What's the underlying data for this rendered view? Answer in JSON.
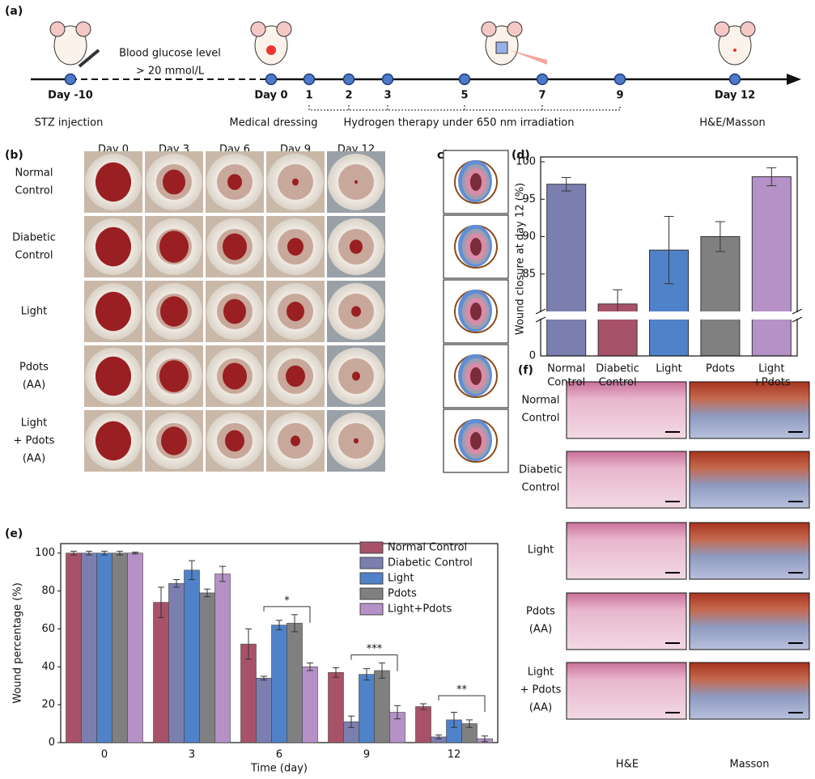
{
  "panel_labels": [
    "(a)",
    "(b)",
    "c)",
    "(d)",
    "(e)",
    "(f)"
  ],
  "timeline": {
    "day_labels": [
      "Day -10",
      "Day 0",
      "1",
      "2",
      "3",
      "5",
      "7",
      "9",
      "Day 12"
    ],
    "captions": [
      "STZ injection",
      "Medical dressing",
      "Hydrogen therapy under 650 nm irradiation",
      "H&E/Masson"
    ],
    "note": [
      "Blood glucose level",
      "> 20 mmol/L"
    ]
  },
  "photos": {
    "columns": [
      "Day 0",
      "Day 3",
      "Day 6",
      "Day 9",
      "Day 12"
    ],
    "rows": [
      [
        "Normal",
        "Control"
      ],
      [
        "Diabetic",
        "Control"
      ],
      [
        "Light"
      ],
      [
        "Pdots",
        "(AA)"
      ],
      [
        "Light",
        "+ Pdots",
        "(AA)"
      ]
    ]
  },
  "histology": {
    "rows": [
      [
        "Normal",
        "Control"
      ],
      [
        "Diabetic",
        "Control"
      ],
      [
        "Light"
      ],
      [
        "Pdots",
        "(AA)"
      ],
      [
        "Light",
        "+ Pdots",
        "(AA)"
      ]
    ],
    "columns": [
      "H&E",
      "Masson"
    ]
  },
  "chart_data": [
    {
      "type": "bar",
      "categories": [
        [
          "Normal",
          "Control"
        ],
        [
          "Diabetic",
          "Control"
        ],
        [
          "Light"
        ],
        [
          "Pdots"
        ],
        [
          "Light",
          "+Pdots"
        ]
      ],
      "values": [
        97,
        81,
        88.2,
        90,
        98
      ],
      "errors": [
        0.9,
        1.9,
        4.5,
        2,
        1.2
      ],
      "colors": [
        "#7b7fb0",
        "#a8526a",
        "#4f82c8",
        "#808080",
        "#b591c8"
      ],
      "ylabel": "Wound closure at day 12 (%)",
      "ylim": [
        0,
        100
      ],
      "ybreak": [
        5,
        80
      ],
      "yticks": [
        0,
        85,
        90,
        95,
        100
      ]
    },
    {
      "type": "grouped_bar",
      "categories": [
        "0",
        "3",
        "6",
        "9",
        "12"
      ],
      "series": [
        {
          "name": "Normal Control",
          "color": "#a8526a",
          "values": [
            100,
            74,
            52,
            37,
            19
          ],
          "errors": [
            1,
            8,
            8,
            2.5,
            1.5
          ]
        },
        {
          "name": "Diabetic Control",
          "color": "#7b7fb0",
          "values": [
            100,
            84,
            34,
            11,
            3
          ],
          "errors": [
            1,
            2,
            1,
            3,
            1
          ]
        },
        {
          "name": "Light",
          "color": "#4f82c8",
          "values": [
            100,
            91,
            62,
            36,
            12
          ],
          "errors": [
            1,
            5,
            2.5,
            3,
            4
          ]
        },
        {
          "name": "Pdots",
          "color": "#808080",
          "values": [
            100,
            79,
            63,
            38,
            10
          ],
          "errors": [
            1,
            2,
            4.5,
            4,
            2
          ]
        },
        {
          "name": "Light+Pdots",
          "color": "#b591c8",
          "values": [
            100,
            89,
            40,
            16,
            2
          ],
          "errors": [
            0.5,
            4,
            2,
            3.5,
            1.5
          ]
        }
      ],
      "annotations": [
        {
          "text": "*",
          "category": "6"
        },
        {
          "text": "***",
          "category": "9"
        },
        {
          "text": "**",
          "category": "12"
        }
      ],
      "xlabel": "Time (day)",
      "ylabel": "Wound percentage (%)",
      "ylim": [
        0,
        105
      ],
      "yticks": [
        0,
        20,
        40,
        60,
        80,
        100
      ]
    }
  ]
}
